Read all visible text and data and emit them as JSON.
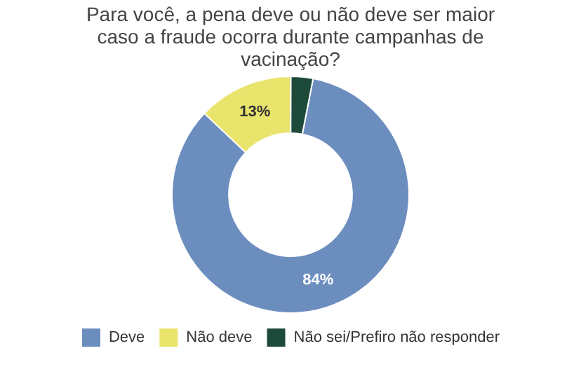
{
  "chart_data": {
    "type": "donut",
    "title": "Para você, a pena deve ou não deve ser maior caso a fraude ocorra durante campanhas de vacinação?",
    "categories": [
      "Deve",
      "Não deve",
      "Não sei/Prefiro não responder"
    ],
    "values": [
      84,
      13,
      3
    ],
    "colors": [
      "#6c8ebf",
      "#e9e46c",
      "#1e4a3c"
    ],
    "value_labels": [
      "84%",
      "13%",
      null
    ],
    "legend": "bottom"
  }
}
